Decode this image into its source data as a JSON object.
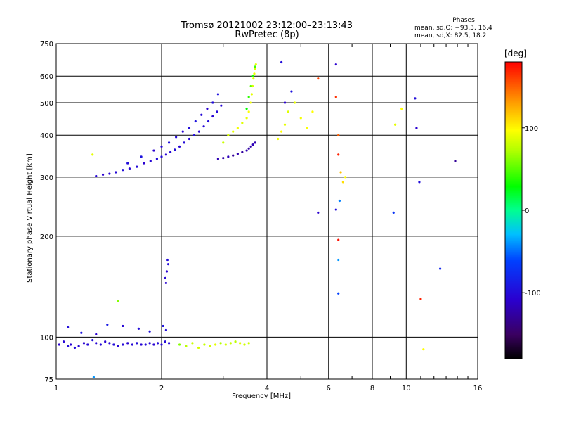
{
  "chart_data": {
    "type": "scatter",
    "title": "Tromsø 20121002 23:12:00–23:13:43",
    "subtitle": "RwPretec (8p)",
    "xlabel": "Frequency [MHz]",
    "ylabel": "Stationary phase Virtual Height [km]",
    "x_scale": "log",
    "y_scale": "log",
    "xlim": [
      1,
      16
    ],
    "ylim": [
      75,
      750
    ],
    "x_ticks": [
      1,
      2,
      4,
      6,
      8,
      10,
      16
    ],
    "x_minor_ticks": [
      3,
      5,
      7,
      9,
      11,
      12,
      13,
      14,
      15
    ],
    "y_ticks": [
      75,
      100,
      200,
      300,
      400,
      500,
      600,
      750
    ],
    "grid": true,
    "colorbar": {
      "label": "[deg]",
      "range": [
        -180,
        180
      ],
      "ticks": [
        100,
        0,
        -100
      ],
      "colormap": "rainbow (black→purple→blue→cyan→green→yellow→orange→red)"
    },
    "phase_stats": {
      "header": "Phases",
      "line_o": "mean, sd,O:  −93.3, 16.4",
      "line_x": "mean, sd,X:   82.5, 18.2"
    },
    "series": [
      {
        "x": [
          1.02,
          1.05,
          1.08,
          1.1,
          1.13,
          1.16,
          1.2,
          1.23,
          1.27,
          1.3,
          1.34,
          1.38,
          1.42,
          1.46,
          1.5,
          1.55,
          1.6,
          1.65,
          1.7,
          1.75,
          1.8,
          1.85,
          1.9,
          1.95,
          2.0,
          2.05,
          2.1
        ],
        "y": [
          95,
          97,
          94,
          95,
          93,
          94,
          96,
          95,
          98,
          96,
          95,
          97,
          96,
          95,
          94,
          95,
          96,
          95,
          96,
          95,
          95,
          96,
          95,
          96,
          95,
          97,
          96
        ],
        "phase": [
          -110,
          -105,
          -100,
          -108,
          -102,
          -106,
          -110,
          -104,
          -100,
          -107,
          -103,
          -108,
          -105,
          -101,
          -106,
          -103,
          -109,
          -104,
          -100,
          -106,
          -102,
          -105,
          -108,
          -103,
          -106,
          -102,
          -104
        ]
      },
      {
        "x": [
          1.08,
          1.18,
          1.3,
          1.4,
          1.55,
          1.72,
          1.85,
          2.02,
          2.06
        ],
        "y": [
          107,
          103,
          102,
          109,
          108,
          106,
          104,
          108,
          105
        ],
        "phase": [
          -100,
          -95,
          -110,
          -90,
          -105,
          -100,
          -98,
          -95,
          -100
        ]
      },
      {
        "x": [
          2.25,
          2.35,
          2.45,
          2.55,
          2.65,
          2.75,
          2.85,
          2.95,
          3.05,
          3.15,
          3.25,
          3.35,
          3.45,
          3.55
        ],
        "y": [
          95,
          94,
          96,
          93,
          95,
          94,
          95,
          96,
          95,
          96,
          97,
          96,
          95,
          96
        ],
        "phase": [
          60,
          75,
          80,
          85,
          78,
          82,
          90,
          70,
          85,
          80,
          75,
          88,
          82,
          80
        ]
      },
      {
        "x": [
          2.05,
          2.07,
          2.09,
          2.06,
          2.08
        ],
        "y": [
          150,
          157,
          165,
          145,
          170
        ],
        "phase": [
          -105,
          -110,
          -100,
          -108,
          -102
        ]
      },
      {
        "x": [
          1.3,
          1.36,
          1.42,
          1.48,
          1.55,
          1.62,
          1.7,
          1.78,
          1.86,
          1.94,
          2.0,
          2.06,
          2.12,
          2.18,
          2.25,
          2.32,
          2.4,
          2.48,
          2.56,
          2.64,
          2.72,
          2.8,
          2.88,
          2.96
        ],
        "y": [
          302,
          305,
          307,
          310,
          315,
          318,
          322,
          330,
          335,
          340,
          345,
          350,
          356,
          362,
          370,
          380,
          390,
          400,
          410,
          425,
          440,
          455,
          470,
          490
        ],
        "phase": [
          -105,
          -110,
          -108,
          -104,
          -100,
          -106,
          -102,
          -110,
          -105,
          -100,
          -103,
          -108,
          -104,
          -100,
          -106,
          -102,
          -105,
          -100,
          -108,
          -104,
          -100,
          -106,
          -102,
          -105
        ]
      },
      {
        "x": [
          1.6,
          1.75,
          1.9,
          2.0,
          2.1,
          2.2,
          2.3,
          2.4,
          2.5,
          2.6,
          2.7,
          2.8,
          2.9
        ],
        "y": [
          330,
          345,
          360,
          370,
          380,
          395,
          410,
          420,
          440,
          460,
          480,
          500,
          530
        ],
        "phase": [
          -100,
          -95,
          -110,
          -105,
          -98,
          -102,
          -108,
          -100,
          -95,
          -104,
          -110,
          -100,
          -96
        ]
      },
      {
        "x": [
          2.9,
          3.0,
          3.1,
          3.2,
          3.3,
          3.4,
          3.5,
          3.55,
          3.6,
          3.65,
          3.7
        ],
        "y": [
          340,
          342,
          345,
          348,
          352,
          356,
          360,
          365,
          370,
          375,
          380
        ],
        "phase": [
          -120,
          -125,
          -118,
          -130,
          -122,
          -128,
          -120,
          -126,
          -124,
          -118,
          -122
        ]
      },
      {
        "x": [
          3.0,
          3.1,
          3.2,
          3.3,
          3.4,
          3.5,
          3.55,
          3.6,
          3.62,
          3.64,
          3.66,
          3.68,
          3.7,
          3.72
        ],
        "y": [
          380,
          400,
          410,
          420,
          435,
          450,
          470,
          500,
          530,
          560,
          590,
          610,
          630,
          650
        ],
        "phase": [
          80,
          85,
          90,
          95,
          88,
          92,
          100,
          95,
          90,
          85,
          88,
          92,
          86,
          90
        ]
      },
      {
        "x": [
          3.5,
          3.55,
          3.6,
          3.65,
          3.7
        ],
        "y": [
          480,
          520,
          560,
          600,
          640
        ],
        "phase": [
          30,
          40,
          50,
          35,
          45
        ]
      },
      {
        "x": [
          4.3,
          4.4,
          4.5,
          4.6,
          4.8,
          5.0,
          5.2,
          5.4
        ],
        "y": [
          390,
          410,
          430,
          470,
          500,
          450,
          420,
          470
        ],
        "phase": [
          95,
          100,
          90,
          88,
          92,
          96,
          98,
          100
        ]
      },
      {
        "x": [
          4.4,
          4.5,
          4.7,
          5.6,
          6.3,
          6.3,
          6.4,
          6.4,
          6.5,
          6.6,
          6.7
        ],
        "y": [
          660,
          500,
          540,
          590,
          650,
          520,
          400,
          350,
          310,
          290,
          300
        ],
        "phase": [
          -100,
          -110,
          -95,
          160,
          -110,
          165,
          150,
          170,
          120,
          110,
          100
        ]
      },
      {
        "x": [
          5.6,
          6.3,
          6.4,
          6.4,
          6.4,
          6.45
        ],
        "y": [
          235,
          240,
          195,
          170,
          135,
          255
        ],
        "phase": [
          -110,
          -100,
          175,
          -40,
          -60,
          -45
        ]
      },
      {
        "x": [
          9.2,
          9.3,
          10.6,
          10.7,
          10.9,
          11.0,
          11.2,
          12.5,
          13.8,
          9.7
        ],
        "y": [
          235,
          430,
          515,
          420,
          290,
          130,
          92,
          160,
          335,
          480
        ],
        "phase": [
          -70,
          90,
          -100,
          -110,
          -100,
          170,
          100,
          -80,
          -130,
          100
        ]
      },
      {
        "x": [
          1.28,
          1.5,
          1.27
        ],
        "y": [
          76,
          128,
          350
        ],
        "phase": [
          -40,
          60,
          90
        ]
      }
    ]
  }
}
